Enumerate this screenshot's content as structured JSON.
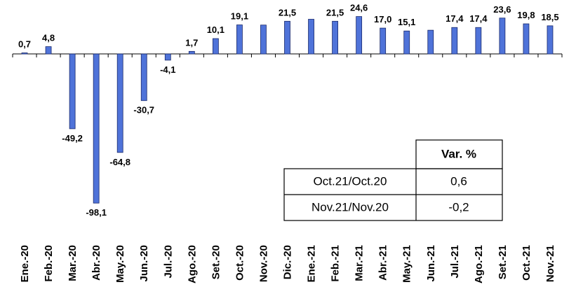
{
  "chart_data": {
    "type": "bar",
    "categories": [
      "Ene.-20",
      "Feb.-20",
      "Mar.-20",
      "Abr.-20",
      "May.-20",
      "Jun.-20",
      "Jul.-20",
      "Ago.-20",
      "Set.-20",
      "Oct.-20",
      "Nov.-20",
      "Dic.-20",
      "Ene.-21",
      "Feb.-21",
      "Mar.-21",
      "Abr.-21",
      "May.-21",
      "Jun.-21",
      "Jul.-21",
      "Ago.-21",
      "Set.-21",
      "Oct.-21",
      "Nov.-21"
    ],
    "values": [
      0.7,
      4.8,
      -49.2,
      -98.1,
      -64.8,
      -30.7,
      -4.1,
      1.7,
      10.1,
      19.1,
      19.0,
      21.5,
      22.8,
      21.5,
      24.6,
      17.0,
      15.1,
      15.6,
      17.4,
      17.4,
      23.6,
      19.8,
      18.5
    ],
    "value_labels": [
      "0,7",
      "4,8",
      "-49,2",
      "-98,1",
      "-64,8",
      "-30,7",
      "-4,1",
      "1,7",
      "10,1",
      "19,1",
      null,
      "21,5",
      null,
      "21,5",
      "24,6",
      "17,0",
      "15,1",
      null,
      "17,4",
      "17,4",
      "23,6",
      "19,8",
      "18,5"
    ],
    "color": "#4f73d9",
    "ylim": [
      -110,
      35
    ]
  },
  "table": {
    "header": "Var. %",
    "rows": [
      [
        "Oct.21/Oct.20",
        "0,6"
      ],
      [
        "Nov.21/Nov.20",
        "-0,2"
      ]
    ]
  }
}
